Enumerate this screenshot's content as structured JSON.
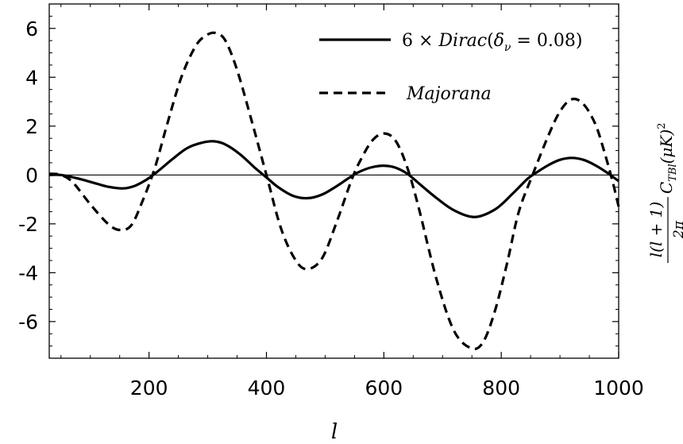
{
  "chart_data": {
    "type": "line",
    "xlabel": "l",
    "ylabel": {
      "numerator": "l(l + 1)",
      "denominator": "2π",
      "rest": "C",
      "sub": "TBl",
      "unit": "(μK)",
      "sup": "2"
    },
    "xlim": [
      30,
      1000
    ],
    "ylim": [
      -7.5,
      7.0
    ],
    "xticks": [
      200,
      400,
      600,
      800,
      1000
    ],
    "yticks": [
      -6,
      -4,
      -2,
      0,
      2,
      4,
      6
    ],
    "grid": false,
    "legend_position": "top-right",
    "legend": {
      "dirac": {
        "prefix": "6 × ",
        "name": "Dirac",
        "open": "(",
        "delta": "δ",
        "sub": "ν",
        "rest": " = 0.08)"
      },
      "majorana": "Majorana"
    },
    "series": [
      {
        "key": "dirac",
        "style": "solid",
        "color": "#000000",
        "x": [
          30,
          50,
          80,
          110,
          130,
          155,
          175,
          195,
          215,
          240,
          265,
          290,
          310,
          330,
          355,
          380,
          400,
          420,
          445,
          470,
          495,
          520,
          545,
          560,
          580,
          600,
          620,
          640,
          660,
          690,
          720,
          755,
          790,
          820,
          845,
          860,
          880,
          900,
          920,
          940,
          960,
          980,
          1000
        ],
        "y": [
          0.0,
          0.0,
          -0.15,
          -0.35,
          -0.48,
          -0.55,
          -0.45,
          -0.2,
          0.15,
          0.65,
          1.1,
          1.32,
          1.38,
          1.25,
          0.85,
          0.3,
          -0.1,
          -0.5,
          -0.85,
          -0.95,
          -0.8,
          -0.45,
          -0.05,
          0.15,
          0.32,
          0.38,
          0.3,
          0.05,
          -0.35,
          -0.95,
          -1.45,
          -1.72,
          -1.4,
          -0.75,
          -0.15,
          0.1,
          0.4,
          0.62,
          0.7,
          0.62,
          0.4,
          0.1,
          -0.25
        ]
      },
      {
        "key": "majorana",
        "style": "dashed",
        "color": "#000000",
        "x": [
          30,
          50,
          70,
          100,
          130,
          150,
          170,
          190,
          210,
          230,
          255,
          280,
          300,
          315,
          330,
          350,
          375,
          400,
          425,
          450,
          470,
          495,
          520,
          545,
          560,
          580,
          600,
          620,
          640,
          660,
          690,
          720,
          750,
          770,
          790,
          810,
          830,
          855,
          880,
          900,
          920,
          940,
          960,
          975,
          990,
          1000
        ],
        "y": [
          0.05,
          0.0,
          -0.3,
          -1.2,
          -2.0,
          -2.25,
          -2.05,
          -1.0,
          0.3,
          2.0,
          4.0,
          5.3,
          5.75,
          5.8,
          5.5,
          4.3,
          2.2,
          0.0,
          -2.2,
          -3.5,
          -3.85,
          -3.4,
          -1.9,
          -0.2,
          0.6,
          1.4,
          1.7,
          1.4,
          0.3,
          -1.4,
          -4.3,
          -6.4,
          -7.1,
          -6.8,
          -5.5,
          -3.6,
          -1.5,
          0.1,
          1.6,
          2.6,
          3.1,
          2.9,
          2.1,
          1.0,
          -0.3,
          -1.3
        ]
      }
    ]
  }
}
